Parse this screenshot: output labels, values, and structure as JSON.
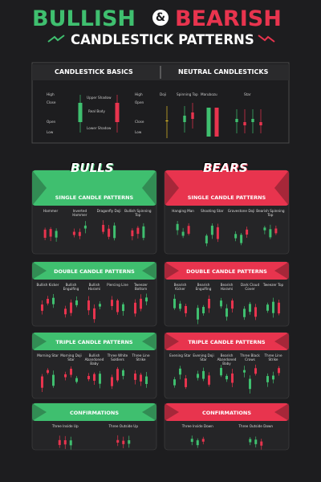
{
  "header": {
    "title_left": "BULLISH",
    "amp": "&",
    "title_right": "BEARISH",
    "subtitle": "CANDLESTICK PATTERNS"
  },
  "basics": {
    "title": "CANDLESTICK BASICS",
    "bull_labels": [
      "High",
      "Close",
      "Open",
      "Low"
    ],
    "parts": [
      "Upper Shadow",
      "Real Body",
      "Lower Shadow"
    ],
    "bear_labels": [
      "High",
      "Open",
      "Close",
      "Low"
    ]
  },
  "neutral": {
    "title": "NEUTRAL CANDLESTICKS",
    "labels": [
      "Doji",
      "Spinning Top",
      "Marubozu",
      "Star"
    ]
  },
  "bulls": {
    "logo": "BULLS",
    "sections": [
      {
        "title": "SINGLE CANDLE PATTERNS",
        "items": [
          "Hammer",
          "Inverted Hammer",
          "Dragonfly Doji",
          "Bullish Spinning Top"
        ]
      },
      {
        "title": "DOUBLE CANDLE PATTERNS",
        "items": [
          "Bullish Kicker",
          "Bullish Engulfing",
          "Bullish Harami",
          "Piercing Line",
          "Tweezer Bottom"
        ]
      },
      {
        "title": "TRIPLE CANDLE PATTERNS",
        "items": [
          "Morning Star",
          "Morning Doji Star",
          "Bullish Abandoned Baby",
          "Three White Soldiers",
          "Three Line Strike"
        ]
      },
      {
        "title": "CONFIRMATIONS",
        "items": [
          "Three Inside Up",
          "Three Outside Up"
        ]
      }
    ]
  },
  "bears": {
    "logo": "BEARS",
    "sections": [
      {
        "title": "SINGLE CANDLE PATTERNS",
        "items": [
          "Hanging Man",
          "Shooting Star",
          "Gravestone Doji",
          "Bearish Spinning Top"
        ]
      },
      {
        "title": "DOUBLE CANDLE PATTERNS",
        "items": [
          "Bearish Kicker",
          "Bearish Engulfing",
          "Bearish Harami",
          "Dark Cloud Cover",
          "Tweezer Top"
        ]
      },
      {
        "title": "TRIPLE CANDLE PATTERNS",
        "items": [
          "Evening Star",
          "Evening Doji Star",
          "Bearish Abandoned Baby",
          "Three Black Crows",
          "Three Line Strike"
        ]
      },
      {
        "title": "CONFIRMATIONS",
        "items": [
          "Three Inside Down",
          "Three Outside Down"
        ]
      }
    ]
  }
}
